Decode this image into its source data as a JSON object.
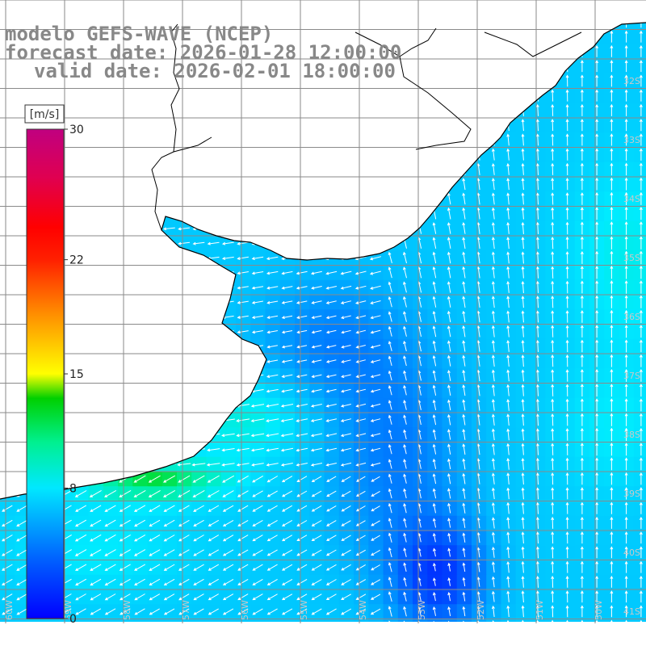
{
  "title": {
    "line1": "modelo GEFS-WAVE (NCEP)",
    "line2": "forecast date: 2026-01-28 12:00:00",
    "line3": "valid date: 2026-02-01 18:00:00"
  },
  "colorbar": {
    "unit": "[m/s]",
    "ticks": [
      {
        "value": 30,
        "label": "30"
      },
      {
        "value": 22,
        "label": "22"
      },
      {
        "value": 15,
        "label": "15"
      },
      {
        "value": 8,
        "label": "8"
      },
      {
        "value": 0,
        "label": "0"
      }
    ]
  },
  "grid": {
    "lat_labels": [
      "32S",
      "33S",
      "34S",
      "35S",
      "36S",
      "37S",
      "38S",
      "39S",
      "40S",
      "41S"
    ],
    "lon_labels": [
      "60W",
      "59W",
      "58W",
      "57W",
      "56W",
      "55W",
      "54W",
      "53W",
      "52W",
      "51W",
      "50W"
    ]
  },
  "colors": {
    "land": "#ffffff",
    "coast": "#000000",
    "grid": "#888888",
    "arrow": "#ffffff",
    "title": "#888888"
  },
  "wind_field_description": "wind speed shaded 0-30 m/s with white direction arrows; strongest (~12-14 m/s, green) along the coast near 39S, weakest (~2 m/s, blue) near 41S 54W"
}
